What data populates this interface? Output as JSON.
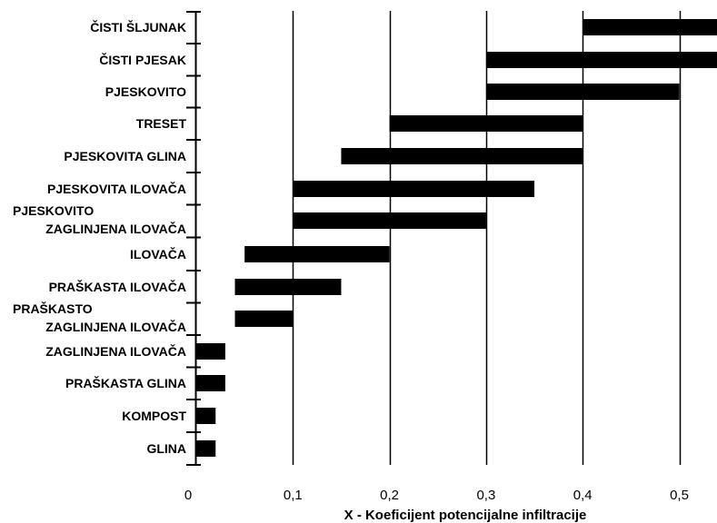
{
  "chart_data": {
    "type": "bar",
    "orientation": "horizontal",
    "subtype": "range",
    "title": "",
    "xlabel": "X - Koeficijent potencijalne infiltracije",
    "ylabel": "",
    "xlim": [
      0,
      0.55
    ],
    "x_ticks": [
      0,
      0.1,
      0.2,
      0.3,
      0.4,
      0.5
    ],
    "x_tick_labels": [
      "0",
      "0,1",
      "0,2",
      "0,3",
      "0,4",
      "0,5"
    ],
    "grid": "vertical",
    "bar_color": "#000000",
    "categories": [
      [
        "ČISTI ŠLJUNAK"
      ],
      [
        "ČISTI PJESAK"
      ],
      [
        "PJESKOVITO"
      ],
      [
        "TRESET"
      ],
      [
        "PJESKOVITA GLINA"
      ],
      [
        "PJESKOVITA ILOVAČA"
      ],
      [
        "PJESKOVITO",
        "ZAGLINJENA ILOVAČA"
      ],
      [
        "ILOVAČA"
      ],
      [
        "PRAŠKASTA ILOVAČA"
      ],
      [
        "PRAŠKASTO",
        "ZAGLINJENA ILOVAČA"
      ],
      [
        "ZAGLINJENA ILOVAČA"
      ],
      [
        "PRAŠKASTA GLINA"
      ],
      [
        "KOMPOST"
      ],
      [
        "GLINA"
      ]
    ],
    "ranges": [
      [
        0.4,
        0.55
      ],
      [
        0.3,
        0.55
      ],
      [
        0.3,
        0.5
      ],
      [
        0.2,
        0.4
      ],
      [
        0.15,
        0.4
      ],
      [
        0.1,
        0.35
      ],
      [
        0.1,
        0.3
      ],
      [
        0.05,
        0.2
      ],
      [
        0.04,
        0.15
      ],
      [
        0.04,
        0.1
      ],
      [
        0.0,
        0.03
      ],
      [
        0.0,
        0.03
      ],
      [
        0.0,
        0.02
      ],
      [
        0.0,
        0.02
      ]
    ]
  }
}
